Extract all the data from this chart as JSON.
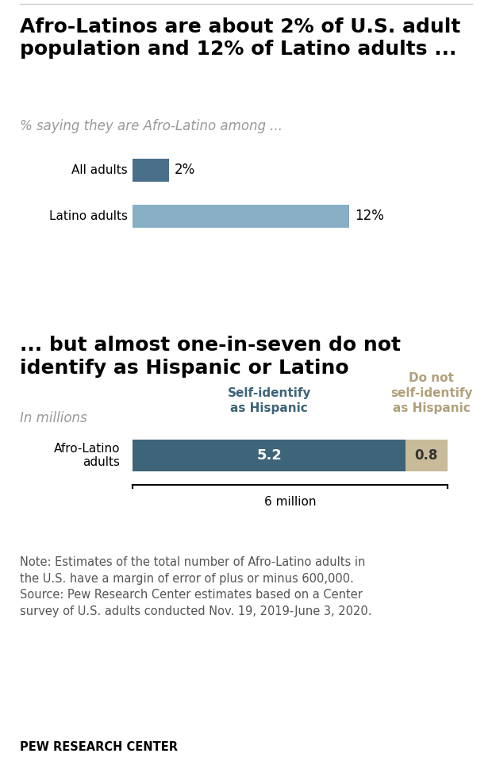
{
  "title1": "Afro-Latinos are about 2% of U.S. adult\npopulation and 12% of Latino adults ...",
  "subtitle1": "% saying they are Afro-Latino among ...",
  "bar1_labels": [
    "All adults",
    "Latino adults"
  ],
  "bar1_values": [
    2,
    12
  ],
  "bar1_colors": [
    "#4a6f8a",
    "#87aec2"
  ],
  "bar1_value_labels": [
    "2%",
    "12%"
  ],
  "title2": "... but almost one-in-seven do not\nidentify as Hispanic or Latino",
  "subtitle2": "In millions",
  "bar2_label": "Afro-Latino\nadults",
  "bar2_self_identify": 5.2,
  "bar2_not_identify": 0.8,
  "bar2_color_self": "#3d6478",
  "bar2_color_not": "#c8bb99",
  "col_label_self": "Self-identify\nas Hispanic",
  "col_label_not": "Do not\nself-identify\nas Hispanic",
  "col_label_self_color": "#3d6478",
  "col_label_not_color": "#b0a07a",
  "bar2_total_label": "6 million",
  "note_text": "Note: Estimates of the total number of Afro-Latino adults in\nthe U.S. have a margin of error of plus or minus 600,000.\nSource: Pew Research Center estimates based on a Center\nsurvey of U.S. adults conducted Nov. 19, 2019-June 3, 2020.",
  "footer": "PEW RESEARCH CENTER",
  "bg_color": "#ffffff",
  "title_fontsize": 18,
  "subtitle_fontsize": 12,
  "bar_label_fontsize": 11,
  "note_fontsize": 10.5
}
